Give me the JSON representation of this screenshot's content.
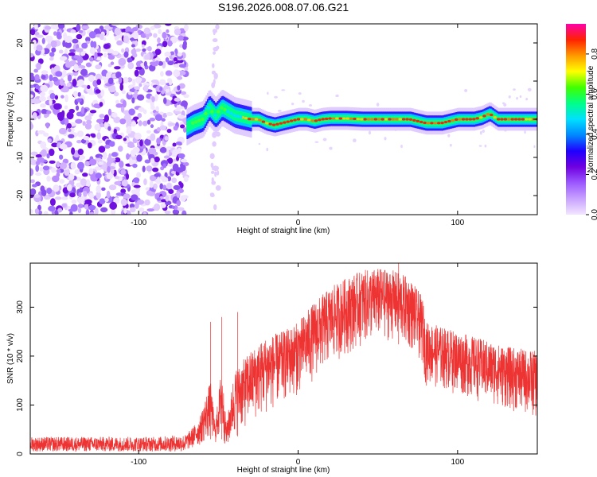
{
  "title": "S196.2026.008.07.06.G21",
  "chart_data": [
    {
      "type": "heatmap",
      "xlabel": "Height of straight line (km)",
      "ylabel": "Frequency (Hz)",
      "xlim": [
        -168,
        150
      ],
      "ylim": [
        -25,
        25
      ],
      "xticks": [
        -100,
        0,
        100
      ],
      "yticks": [
        20,
        10,
        0,
        -10,
        -20
      ],
      "colorbar": {
        "label": "Normalized spectral amplitude",
        "range": [
          0,
          0.95
        ],
        "ticks": [
          0.0,
          0.2,
          0.4,
          0.6,
          0.8
        ]
      },
      "signal_track": {
        "x": [
          -70,
          -66,
          -60,
          -56,
          -52,
          -48,
          -44,
          -40,
          -35,
          -30,
          -25,
          -20,
          -15,
          -10,
          -5,
          0,
          5,
          10,
          15,
          20,
          30,
          40,
          50,
          60,
          70,
          80,
          90,
          100,
          110,
          115,
          120,
          125,
          130,
          140,
          150
        ],
        "y": [
          -2,
          -1,
          0,
          3,
          1,
          3,
          2,
          1,
          0.5,
          0,
          0,
          -1,
          -1.5,
          -1,
          -0.5,
          0,
          0,
          -0.5,
          0,
          0.2,
          0.2,
          0,
          0,
          0,
          0,
          -1,
          -1,
          0,
          0,
          0.5,
          1.5,
          0,
          0,
          0,
          0
        ]
      }
    },
    {
      "type": "line",
      "xlabel": "Height of straight line (km)",
      "ylabel": "SNR (10 * v/v)",
      "xlim": [
        -168,
        150
      ],
      "ylim": [
        0,
        390
      ],
      "xticks": [
        -100,
        0,
        100
      ],
      "yticks": [
        0,
        100,
        200,
        300
      ],
      "color": "#ee3333",
      "envelope": {
        "x": [
          -168,
          -150,
          -120,
          -90,
          -70,
          -62,
          -55,
          -52,
          -48,
          -45,
          -40,
          -30,
          -20,
          -10,
          0,
          10,
          20,
          30,
          40,
          50,
          60,
          70,
          78,
          80,
          90,
          100,
          110,
          120,
          130,
          140,
          150
        ],
        "lower": [
          5,
          5,
          5,
          5,
          5,
          15,
          30,
          20,
          30,
          10,
          30,
          60,
          80,
          100,
          120,
          150,
          180,
          200,
          220,
          230,
          230,
          210,
          180,
          140,
          130,
          120,
          110,
          100,
          90,
          80,
          70
        ],
        "upper": [
          35,
          35,
          35,
          35,
          40,
          70,
          150,
          60,
          180,
          60,
          170,
          210,
          240,
          250,
          270,
          310,
          340,
          360,
          375,
          380,
          375,
          360,
          320,
          270,
          260,
          250,
          240,
          230,
          220,
          215,
          210
        ]
      },
      "peaks": [
        {
          "x": -55,
          "y": 270
        },
        {
          "x": -48,
          "y": 280
        },
        {
          "x": -38,
          "y": 290
        },
        {
          "x": 63,
          "y": 390
        }
      ]
    }
  ],
  "colors": {
    "line": "#ee3333",
    "colormap": [
      "#f2e6ff",
      "#c9a2ff",
      "#9b59ff",
      "#7000e0",
      "#2000ff",
      "#0088ff",
      "#00e0ff",
      "#00ff88",
      "#40ff00",
      "#ffff00",
      "#ff9900",
      "#ff2200",
      "#ff00aa"
    ]
  }
}
